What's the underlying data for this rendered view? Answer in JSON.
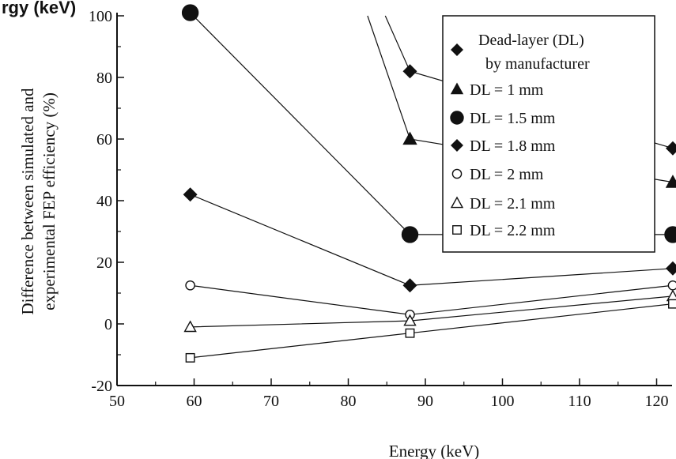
{
  "top_label": "rgy (keV)",
  "chart_data": {
    "type": "line",
    "xlabel": "Energy (keV)",
    "ylabel_line1": "Difference  between  simulated and",
    "ylabel_line2": "experimental FEP efficiency  (%)",
    "xlim": [
      50,
      122
    ],
    "ylim": [
      -20,
      100
    ],
    "x_ticks": [
      50,
      60,
      70,
      80,
      90,
      100,
      110,
      120
    ],
    "y_ticks": [
      -20,
      0,
      20,
      40,
      60,
      80,
      100
    ],
    "grid": false,
    "legend_position": "top-right",
    "legend_title": [
      "Dead-layer (DL)",
      "by manufacturer"
    ],
    "series": [
      {
        "name": "Dead-layer (DL) by manufacturer",
        "marker": "diamond-filled",
        "x": [
          88.0,
          122.1
        ],
        "y": [
          82,
          57
        ],
        "entry_from": [
          84.8,
          100
        ]
      },
      {
        "name": "DL = 1 mm",
        "marker": "triangle-filled",
        "x": [
          88.0,
          122.1
        ],
        "y": [
          60,
          46
        ],
        "entry_from": [
          82.5,
          100
        ]
      },
      {
        "name": "DL = 1.5 mm",
        "marker": "circle-filled",
        "x": [
          59.5,
          88.0,
          122.1
        ],
        "y": [
          101,
          29,
          29
        ]
      },
      {
        "name": "DL = 1.8 mm",
        "marker": "diamond-filled",
        "x": [
          59.5,
          88.0,
          122.1
        ],
        "y": [
          42,
          12.5,
          18
        ]
      },
      {
        "name": "DL = 2 mm",
        "marker": "circle-open",
        "x": [
          59.5,
          88.0,
          122.1
        ],
        "y": [
          12.5,
          3,
          12.5
        ]
      },
      {
        "name": "DL = 2.1 mm",
        "marker": "triangle-open",
        "x": [
          59.5,
          88.0,
          122.1
        ],
        "y": [
          -1,
          1,
          9
        ]
      },
      {
        "name": "DL = 2.2 mm",
        "marker": "square-open",
        "x": [
          59.5,
          88.0,
          122.1
        ],
        "y": [
          -11,
          -3,
          6.5
        ]
      }
    ]
  }
}
